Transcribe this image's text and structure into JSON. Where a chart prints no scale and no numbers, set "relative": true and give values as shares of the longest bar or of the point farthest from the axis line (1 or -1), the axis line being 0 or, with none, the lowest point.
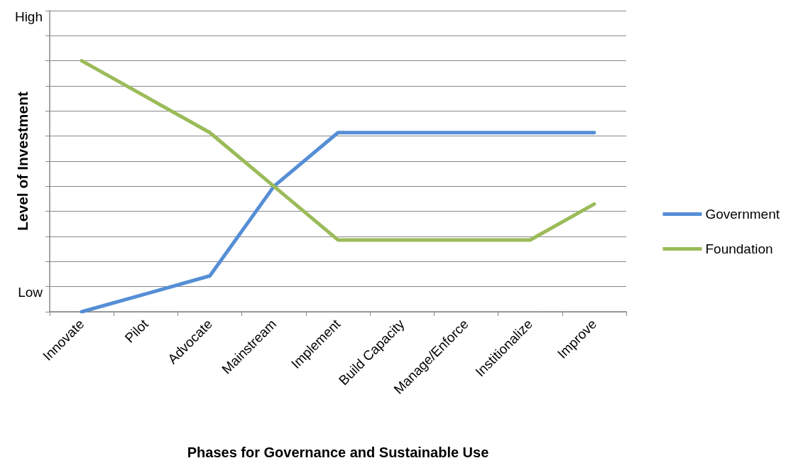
{
  "chart_data": {
    "type": "line",
    "xlabel": "Phases for Governance and Sustainable Use",
    "ylabel": "Level of Investment",
    "categories": [
      "Innovate",
      "Pilot",
      "Advocate",
      "Mainstream",
      "Implement",
      "Build Capacity",
      "Manage/Enforce",
      "Institionalize",
      "Improve"
    ],
    "series": [
      {
        "name": "Government",
        "color": "#558ed5",
        "values": [
          0,
          0.071,
          0.143,
          0.5,
          0.714,
          0.714,
          0.714,
          0.714,
          0.714
        ]
      },
      {
        "name": "Foundation",
        "color": "#9bbb59",
        "values": [
          1,
          0.857,
          0.714,
          0.5,
          0.286,
          0.286,
          0.286,
          0.286,
          0.429
        ]
      }
    ],
    "relative": true,
    "annotations": [
      "Low",
      "High"
    ],
    "grid": "y",
    "legend": "right",
    "marker": "none",
    "line_style": "solid"
  }
}
